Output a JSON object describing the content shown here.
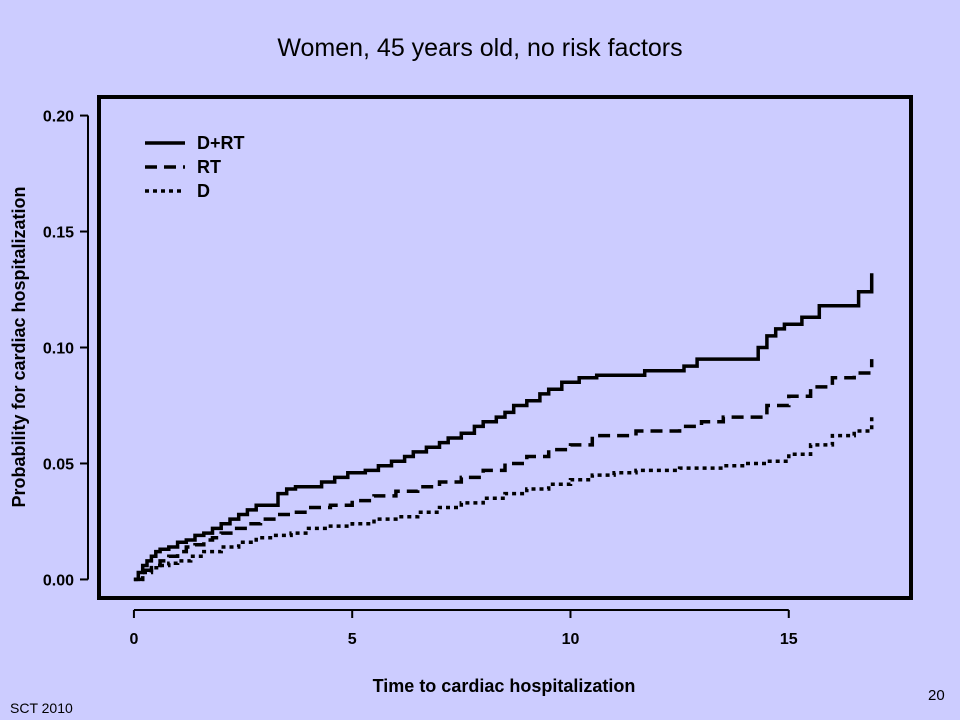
{
  "slide": {
    "title": "Women, 45 years old, no risk factors",
    "footer_left": "SCT 2010",
    "page_number": "20"
  },
  "chart_data": {
    "type": "line",
    "title": "Women, 45 years old, no risk factors",
    "xlabel": "Time to cardiac hospitalization",
    "ylabel": "Probability for cardiac hospitalization",
    "xlim": [
      -0.8,
      17.8
    ],
    "ylim": [
      -0.008,
      0.208
    ],
    "x_ticks": [
      "0",
      "5",
      "10",
      "15"
    ],
    "y_ticks": [
      "0.00",
      "0.05",
      "0.10",
      "0.15",
      "0.20"
    ],
    "legend_position": "top-left",
    "grid": false,
    "line_color": "#000000",
    "series": [
      {
        "name": "D+RT",
        "style": "solid",
        "x": [
          0,
          0.1,
          0.2,
          0.3,
          0.4,
          0.5,
          0.6,
          0.8,
          1.0,
          1.2,
          1.4,
          1.6,
          1.8,
          2.0,
          2.2,
          2.4,
          2.6,
          2.8,
          3.3,
          3.5,
          3.7,
          4.3,
          4.6,
          4.9,
          5.3,
          5.6,
          5.9,
          6.2,
          6.4,
          6.7,
          7.0,
          7.2,
          7.5,
          7.8,
          8.0,
          8.3,
          8.5,
          8.7,
          9.0,
          9.3,
          9.5,
          9.8,
          10.2,
          10.6,
          11.3,
          11.7,
          12.3,
          12.6,
          12.9,
          13.5,
          14.0,
          14.3,
          14.5,
          14.7,
          14.9,
          15.3,
          15.7,
          16.2,
          16.6,
          16.9
        ],
        "y": [
          0.0,
          0.003,
          0.006,
          0.008,
          0.01,
          0.012,
          0.013,
          0.014,
          0.016,
          0.017,
          0.019,
          0.02,
          0.022,
          0.024,
          0.026,
          0.028,
          0.03,
          0.032,
          0.037,
          0.039,
          0.04,
          0.042,
          0.044,
          0.046,
          0.047,
          0.049,
          0.051,
          0.053,
          0.055,
          0.057,
          0.059,
          0.061,
          0.063,
          0.066,
          0.068,
          0.07,
          0.072,
          0.075,
          0.077,
          0.08,
          0.082,
          0.085,
          0.087,
          0.088,
          0.088,
          0.09,
          0.09,
          0.092,
          0.095,
          0.095,
          0.095,
          0.1,
          0.105,
          0.108,
          0.11,
          0.113,
          0.118,
          0.118,
          0.124,
          0.132
        ]
      },
      {
        "name": "RT",
        "style": "dashed",
        "x": [
          0,
          0.2,
          0.4,
          0.6,
          0.8,
          1.0,
          1.2,
          1.4,
          1.6,
          1.8,
          2.0,
          2.3,
          2.6,
          2.9,
          3.3,
          3.6,
          4.0,
          4.5,
          5.0,
          5.5,
          6.0,
          6.5,
          7.0,
          7.5,
          8.0,
          8.5,
          9.0,
          9.5,
          10.0,
          10.5,
          11.5,
          12.5,
          13.0,
          13.5,
          14.0,
          14.3,
          14.5,
          15.0,
          15.5,
          16.0,
          16.5,
          16.9
        ],
        "y": [
          0.0,
          0.004,
          0.006,
          0.008,
          0.01,
          0.012,
          0.014,
          0.015,
          0.017,
          0.018,
          0.02,
          0.022,
          0.024,
          0.026,
          0.028,
          0.029,
          0.031,
          0.032,
          0.034,
          0.036,
          0.038,
          0.04,
          0.042,
          0.044,
          0.047,
          0.05,
          0.053,
          0.056,
          0.058,
          0.062,
          0.064,
          0.066,
          0.068,
          0.07,
          0.07,
          0.07,
          0.075,
          0.079,
          0.083,
          0.087,
          0.089,
          0.095
        ]
      },
      {
        "name": "D",
        "style": "dotted",
        "x": [
          0,
          0.2,
          0.4,
          0.6,
          0.8,
          1.0,
          1.3,
          1.6,
          2.0,
          2.4,
          2.8,
          3.2,
          3.6,
          4.0,
          4.5,
          5.0,
          5.5,
          6.0,
          6.5,
          7.0,
          7.5,
          8.0,
          8.5,
          9.0,
          9.5,
          10.0,
          10.5,
          11.0,
          11.5,
          12.0,
          12.5,
          13.0,
          13.5,
          14.0,
          14.5,
          15.0,
          15.5,
          16.0,
          16.5,
          16.9
        ],
        "y": [
          0.0,
          0.003,
          0.005,
          0.006,
          0.007,
          0.008,
          0.01,
          0.012,
          0.014,
          0.016,
          0.018,
          0.019,
          0.02,
          0.022,
          0.023,
          0.024,
          0.026,
          0.027,
          0.029,
          0.031,
          0.033,
          0.035,
          0.037,
          0.039,
          0.041,
          0.043,
          0.045,
          0.046,
          0.047,
          0.047,
          0.048,
          0.048,
          0.049,
          0.05,
          0.051,
          0.054,
          0.058,
          0.062,
          0.064,
          0.07
        ]
      }
    ]
  }
}
